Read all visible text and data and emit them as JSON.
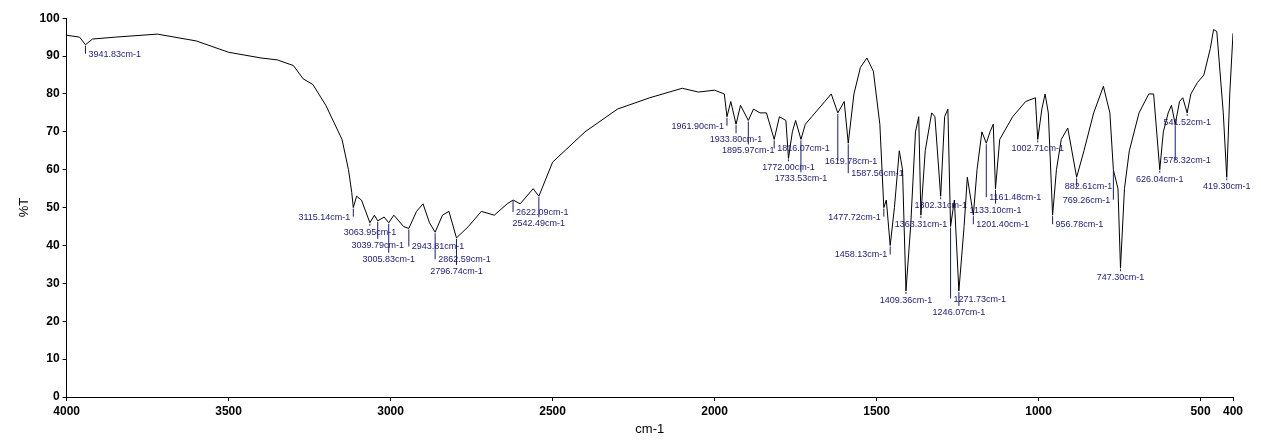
{
  "chart_data": {
    "type": "line",
    "xlabel": "cm-1",
    "ylabel": "%T",
    "xlim": [
      4000,
      400
    ],
    "ylim": [
      0,
      100
    ],
    "xticks": [
      4000,
      3500,
      3000,
      2500,
      2000,
      1500,
      1000,
      500,
      400
    ],
    "yticks": [
      0,
      10,
      20,
      30,
      40,
      50,
      60,
      70,
      80,
      90,
      100
    ],
    "grid": false,
    "legend": false,
    "marker": "none",
    "line_style": "solid",
    "series": [
      {
        "color": "#000000",
        "x": [
          4000,
          3960,
          3941.83,
          3920,
          3850,
          3720,
          3600,
          3500,
          3400,
          3350,
          3300,
          3270,
          3240,
          3200,
          3150,
          3130,
          3120,
          3115.14,
          3105,
          3090,
          3063.95,
          3050,
          3039.79,
          3020,
          3005.83,
          2990,
          2960,
          2943.81,
          2920,
          2900,
          2880,
          2862.59,
          2840,
          2820,
          2796.74,
          2760,
          2720,
          2680,
          2640,
          2622.09,
          2600,
          2560,
          2542.49,
          2500,
          2400,
          2300,
          2200,
          2100,
          2050,
          2000,
          1970,
          1961.9,
          1950,
          1933.8,
          1920,
          1895.97,
          1880,
          1860,
          1840,
          1816.07,
          1800,
          1780,
          1772,
          1760,
          1750,
          1733.53,
          1720,
          1700,
          1660,
          1640,
          1619.78,
          1600,
          1587.56,
          1570,
          1550,
          1530,
          1510,
          1490,
          1477.72,
          1470,
          1458.13,
          1445,
          1430,
          1420,
          1409.36,
          1395,
          1380,
          1370,
          1363.31,
          1350,
          1330,
          1320,
          1302.31,
          1290,
          1280,
          1271.73,
          1260,
          1246.07,
          1230,
          1220,
          1201.4,
          1190,
          1175,
          1161.48,
          1150,
          1140,
          1133.1,
          1120,
          1080,
          1040,
          1010,
          1002.71,
          990,
          980,
          970,
          956.78,
          945,
          930,
          910,
          882.61,
          860,
          830,
          800,
          780,
          769.26,
          755,
          747.3,
          735,
          720,
          690,
          660,
          645,
          626.04,
          615,
          600,
          590,
          578.32,
          565,
          555,
          541.52,
          530,
          510,
          490,
          470,
          460,
          450,
          430,
          419.3,
          410,
          400
        ],
        "values": [
          95.5,
          95,
          93,
          94.5,
          95,
          95.8,
          94,
          91,
          89.5,
          89,
          87.5,
          84,
          82.5,
          77,
          68,
          60,
          54,
          50,
          53,
          52,
          46,
          48,
          46.5,
          47.5,
          46,
          48,
          45,
          44.5,
          49,
          51,
          46,
          43.5,
          48,
          49,
          42,
          45,
          49,
          48,
          51,
          52,
          51,
          55,
          53,
          62,
          70,
          76,
          79,
          81.5,
          80.5,
          81,
          80,
          74,
          78,
          72,
          77,
          73,
          76,
          75,
          75,
          68,
          74,
          73,
          63,
          70,
          73,
          68,
          72,
          74,
          78,
          80,
          75,
          78,
          67,
          80,
          87,
          89.5,
          86,
          72,
          50,
          52,
          40,
          50,
          65,
          60,
          28,
          45,
          70,
          74,
          48,
          65,
          75,
          74,
          53,
          74,
          76,
          45,
          52,
          28,
          45,
          58,
          48,
          60,
          70,
          67,
          70,
          72,
          55,
          68,
          74,
          78,
          79,
          68,
          76,
          80,
          75,
          48,
          60,
          68,
          71,
          58,
          65,
          75,
          82,
          75,
          60,
          55,
          34,
          55,
          65,
          75,
          80,
          80,
          60,
          70,
          75,
          77,
          72,
          78,
          79,
          75,
          80,
          83,
          85,
          92,
          97,
          96.5,
          75,
          58,
          80,
          96
        ]
      }
    ],
    "annotations": [
      {
        "text": "3941.83cm-1",
        "x": 3941.83,
        "y": 93
      },
      {
        "text": "3115.14cm-1",
        "x": 3115.14,
        "y": 50
      },
      {
        "text": "3063.95cm-1",
        "x": 3063.95,
        "y": 46
      },
      {
        "text": "3039.79cm-1",
        "x": 3039.79,
        "y": 46.5
      },
      {
        "text": "3005.83cm-1",
        "x": 3005.83,
        "y": 46
      },
      {
        "text": "2943.81cm-1",
        "x": 2943.81,
        "y": 44.5
      },
      {
        "text": "2862.59cm-1",
        "x": 2862.59,
        "y": 43.5
      },
      {
        "text": "2796.74cm-1",
        "x": 2796.74,
        "y": 42
      },
      {
        "text": "2622.09cm-1",
        "x": 2622.09,
        "y": 52
      },
      {
        "text": "2542.49cm-1",
        "x": 2542.49,
        "y": 53
      },
      {
        "text": "1961.90cm-1",
        "x": 1961.9,
        "y": 74
      },
      {
        "text": "1933.80cm-1",
        "x": 1933.8,
        "y": 72
      },
      {
        "text": "1895.97cm-1",
        "x": 1895.97,
        "y": 73
      },
      {
        "text": "1816.07cm-1",
        "x": 1816.07,
        "y": 68
      },
      {
        "text": "1772.00cm-1",
        "x": 1772,
        "y": 63
      },
      {
        "text": "1733.53cm-1",
        "x": 1733.53,
        "y": 68
      },
      {
        "text": "1619.78cm-1",
        "x": 1619.78,
        "y": 75
      },
      {
        "text": "1587.56cm-1",
        "x": 1587.56,
        "y": 67
      },
      {
        "text": "1477.72cm-1",
        "x": 1477.72,
        "y": 50
      },
      {
        "text": "1458.13cm-1",
        "x": 1458.13,
        "y": 40
      },
      {
        "text": "1409.36cm-1",
        "x": 1409.36,
        "y": 28
      },
      {
        "text": "1363.31cm-1",
        "x": 1363.31,
        "y": 48
      },
      {
        "text": "1302.31cm-1",
        "x": 1302.31,
        "y": 53
      },
      {
        "text": "1271.73cm-1",
        "x": 1271.73,
        "y": 45
      },
      {
        "text": "1246.07cm-1",
        "x": 1246.07,
        "y": 28
      },
      {
        "text": "1201.40cm-1",
        "x": 1201.4,
        "y": 48
      },
      {
        "text": "1161.48cm-1",
        "x": 1161.48,
        "y": 67
      },
      {
        "text": "1133.10cm-1",
        "x": 1133.1,
        "y": 55
      },
      {
        "text": "1002.71cm-1",
        "x": 1002.71,
        "y": 68
      },
      {
        "text": "956.78cm-1",
        "x": 956.78,
        "y": 48
      },
      {
        "text": "882.61cm-1",
        "x": 882.61,
        "y": 58
      },
      {
        "text": "769.26cm-1",
        "x": 769.26,
        "y": 60
      },
      {
        "text": "747.30cm-1",
        "x": 747.3,
        "y": 34
      },
      {
        "text": "626.04cm-1",
        "x": 626.04,
        "y": 60
      },
      {
        "text": "578.32cm-1",
        "x": 578.32,
        "y": 72
      },
      {
        "text": "541.52cm-1",
        "x": 541.52,
        "y": 75
      },
      {
        "text": "419.30cm-1",
        "x": 419.3,
        "y": 58
      }
    ]
  }
}
